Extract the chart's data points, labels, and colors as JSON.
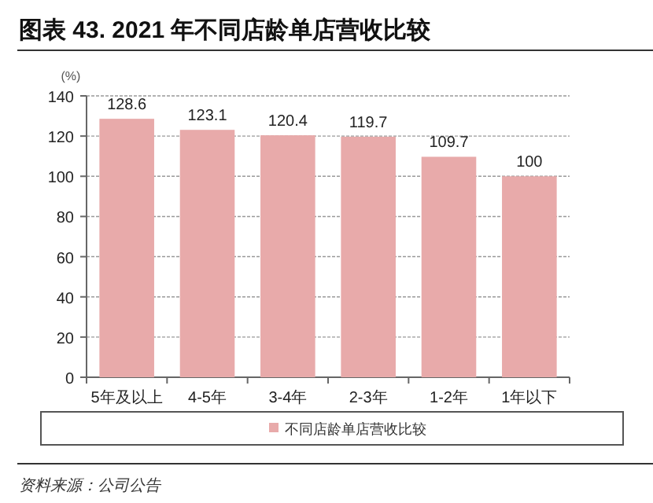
{
  "chart_data": {
    "type": "bar",
    "title": "图表 43. 2021 年不同店龄单店营收比较",
    "ylabel": "(%)",
    "categories": [
      "5年及以上",
      "4-5年",
      "3-4年",
      "2-3年",
      "1-2年",
      "1年以下"
    ],
    "series": [
      {
        "name": "不同店龄单店营收比较",
        "color": "#e8aaaa",
        "values": [
          128.6,
          123.1,
          120.4,
          119.7,
          109.7,
          100
        ]
      }
    ],
    "ylim": [
      0,
      140
    ],
    "yticks": [
      0,
      20,
      40,
      60,
      80,
      100,
      120,
      140
    ],
    "grid": "y",
    "legend": "bottom",
    "data_labels": true,
    "annotations": [
      "资料来源：公司公告"
    ]
  }
}
